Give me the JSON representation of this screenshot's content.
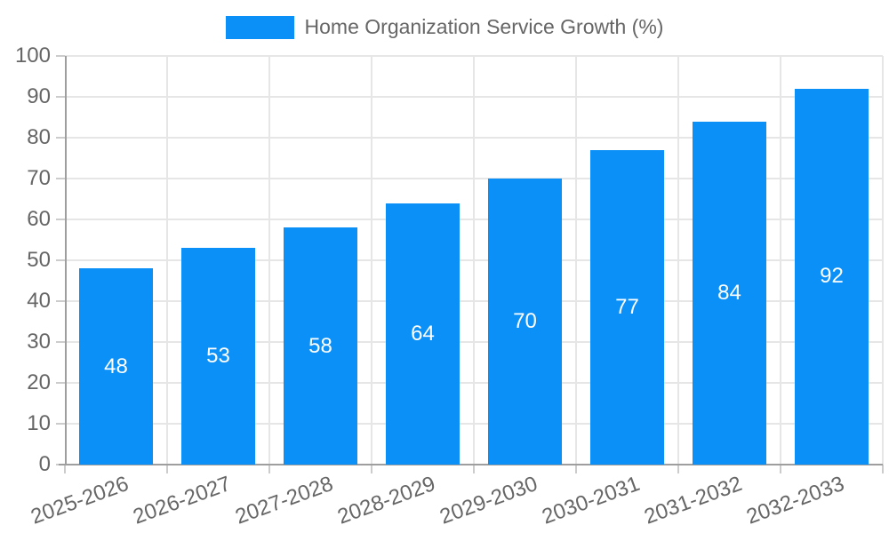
{
  "chart_data": {
    "type": "bar",
    "title": "Home Organization Service Growth (%)",
    "categories": [
      "2025-2026",
      "2026-2027",
      "2027-2028",
      "2028-2029",
      "2029-2030",
      "2030-2031",
      "2031-2032",
      "2032-2033"
    ],
    "values": [
      48,
      53,
      58,
      64,
      70,
      77,
      84,
      92
    ],
    "xlabel": "",
    "ylabel": "",
    "ylim": [
      0,
      100
    ],
    "ytick_step": 10,
    "ytick_labels": [
      "0",
      "10",
      "20",
      "30",
      "40",
      "50",
      "60",
      "70",
      "80",
      "90",
      "100"
    ],
    "grid": true,
    "legend_position": "top",
    "bar_color": "#0b90f8",
    "value_label_color": "#ffffff",
    "tick_text_color": "#666666"
  }
}
